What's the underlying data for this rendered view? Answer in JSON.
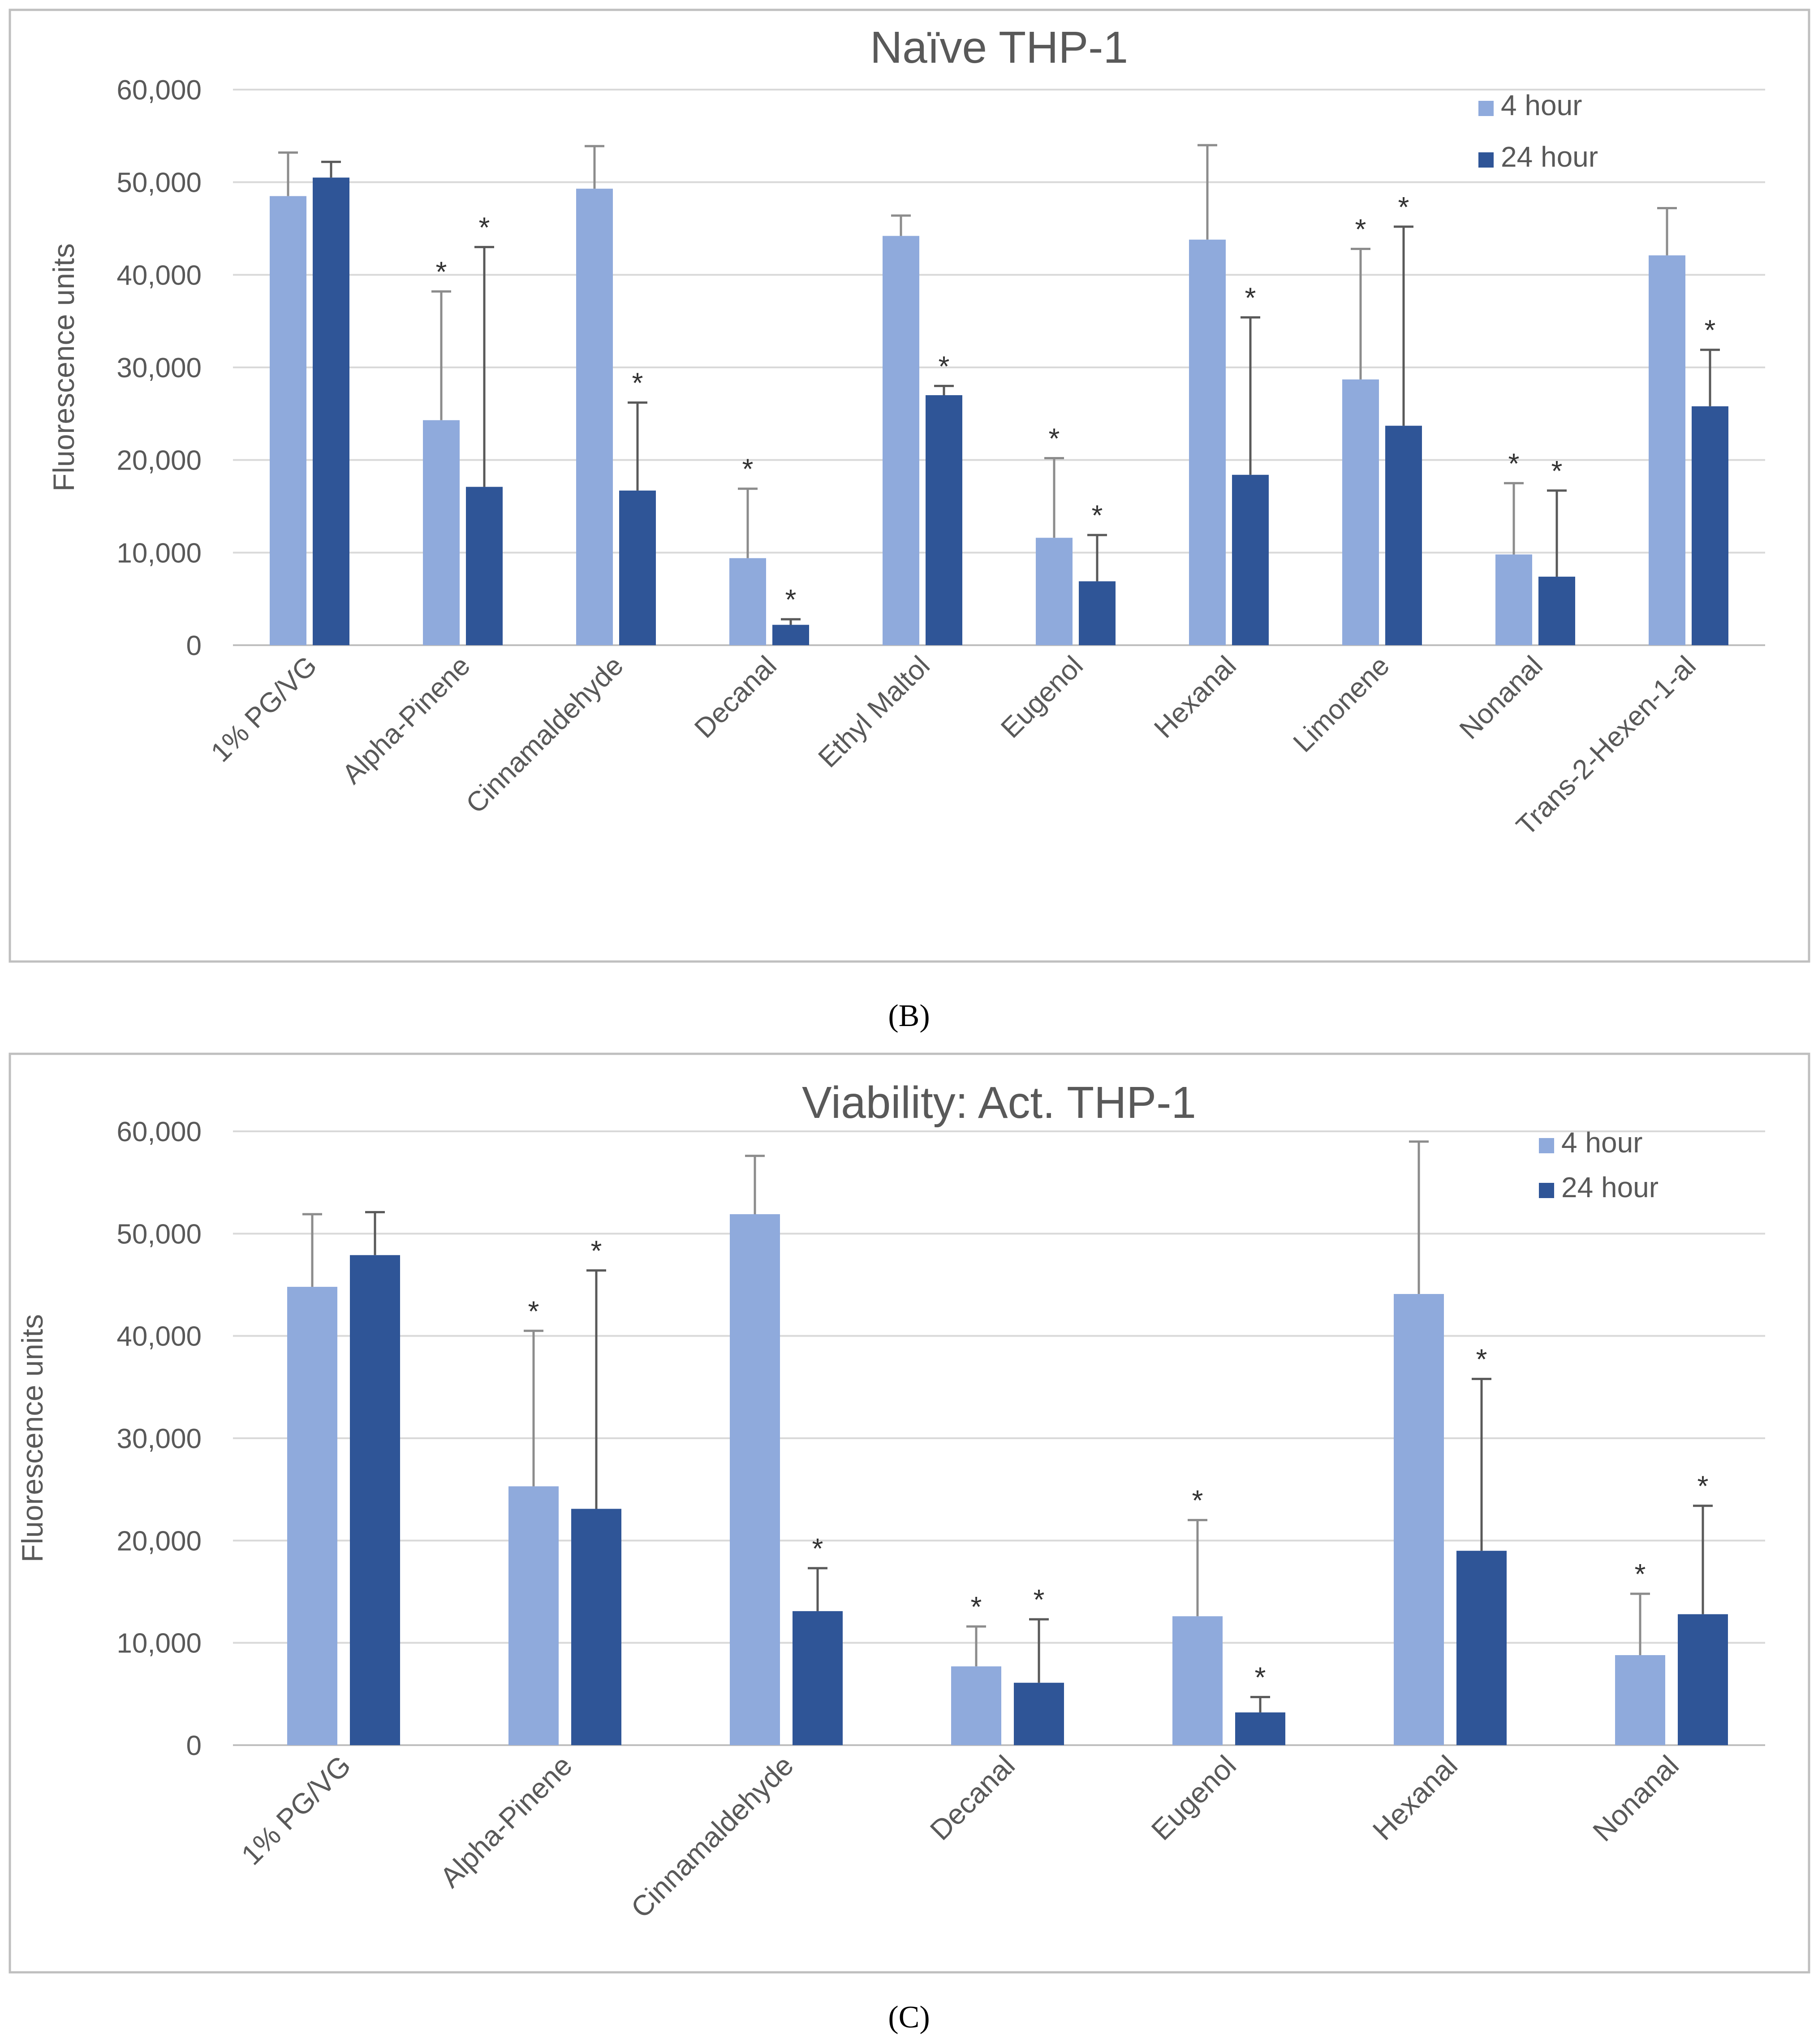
{
  "colors": {
    "series_4h": "#8faadc",
    "series_24h": "#2f5597",
    "grid": "#d9d9d9",
    "frame": "#bfbfbf",
    "error_4h": "#8c8c8c",
    "error_24h": "#595959"
  },
  "panel_labels": {
    "b": "(B)",
    "c": "(C)"
  },
  "chart_data": [
    {
      "type": "bar",
      "title": "Naïve THP-1",
      "ylabel": "Fluorescence units",
      "xlabel": "",
      "ylim": [
        0,
        60000
      ],
      "yticks": [
        0,
        10000,
        20000,
        30000,
        40000,
        50000,
        60000
      ],
      "ytick_labels": [
        "0",
        "10,000",
        "20,000",
        "30,000",
        "40,000",
        "50,000",
        "60,000"
      ],
      "grid": true,
      "legend_position": "top-right",
      "significance_marker": "*",
      "categories": [
        "1% PG/VG",
        "Alpha-Pinene",
        "Cinnamaldehyde",
        "Decanal",
        "Ethyl Maltol",
        "Eugenol",
        "Hexanal",
        "Limonene",
        "Nonanal",
        "Trans-2-Hexen-1-al"
      ],
      "series": [
        {
          "name": "4 hour",
          "values": [
            48500,
            24300,
            49300,
            9400,
            44200,
            11600,
            43800,
            28700,
            9800,
            42100
          ],
          "error_top": [
            53200,
            38200,
            53900,
            16900,
            46400,
            20200,
            54000,
            42800,
            17500,
            47200
          ],
          "significant": [
            false,
            true,
            false,
            true,
            false,
            true,
            false,
            true,
            true,
            false
          ]
        },
        {
          "name": "24 hour",
          "values": [
            50500,
            17100,
            16700,
            2200,
            27000,
            6900,
            18400,
            23700,
            7400,
            25800
          ],
          "error_top": [
            52200,
            43000,
            26200,
            2800,
            28000,
            11900,
            35400,
            45200,
            16700,
            31900
          ],
          "significant": [
            false,
            true,
            true,
            true,
            true,
            true,
            true,
            true,
            true,
            true
          ]
        }
      ]
    },
    {
      "type": "bar",
      "title": "Viability: Act. THP-1",
      "ylabel": "Fluorescence units",
      "xlabel": "",
      "ylim": [
        0,
        60000
      ],
      "yticks": [
        0,
        10000,
        20000,
        30000,
        40000,
        50000,
        60000
      ],
      "ytick_labels": [
        "0",
        "10,000",
        "20,000",
        "30,000",
        "40,000",
        "50,000",
        "60,000"
      ],
      "grid": true,
      "legend_position": "top-right",
      "significance_marker": "*",
      "categories": [
        "1% PG/VG",
        "Alpha-Pinene",
        "Cinnamaldehyde",
        "Decanal",
        "Eugenol",
        "Hexanal",
        "Nonanal"
      ],
      "series": [
        {
          "name": "4 hour",
          "values": [
            44800,
            25300,
            51900,
            7700,
            12600,
            44100,
            8800
          ],
          "error_top": [
            51900,
            40500,
            57600,
            11600,
            22000,
            59000,
            14800
          ],
          "significant": [
            false,
            true,
            false,
            true,
            true,
            false,
            true
          ]
        },
        {
          "name": "24 hour",
          "values": [
            47900,
            23100,
            13100,
            6100,
            3200,
            19000,
            12800
          ],
          "error_top": [
            52100,
            46400,
            17300,
            12300,
            4700,
            35800,
            23400
          ],
          "significant": [
            false,
            true,
            true,
            true,
            true,
            true,
            true
          ]
        }
      ]
    }
  ]
}
